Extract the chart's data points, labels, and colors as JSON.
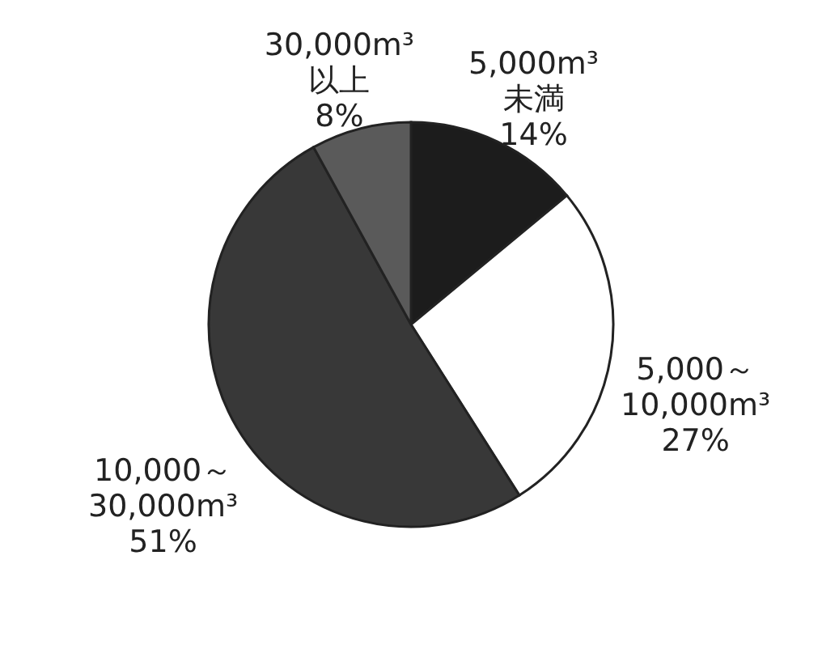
{
  "chart_data": {
    "type": "pie",
    "categories": [
      "5,000m³\n未満",
      "5,000～\n10,000m³",
      "10,000～\n30,000m³",
      "30,000m³\n以上"
    ],
    "values": [
      14,
      27,
      51,
      8
    ],
    "value_labels": [
      "14%",
      "27%",
      "51%",
      "8%"
    ],
    "colors": [
      "#1c1c1c",
      "#ffffff",
      "#383838",
      "#5a5a5a"
    ]
  }
}
